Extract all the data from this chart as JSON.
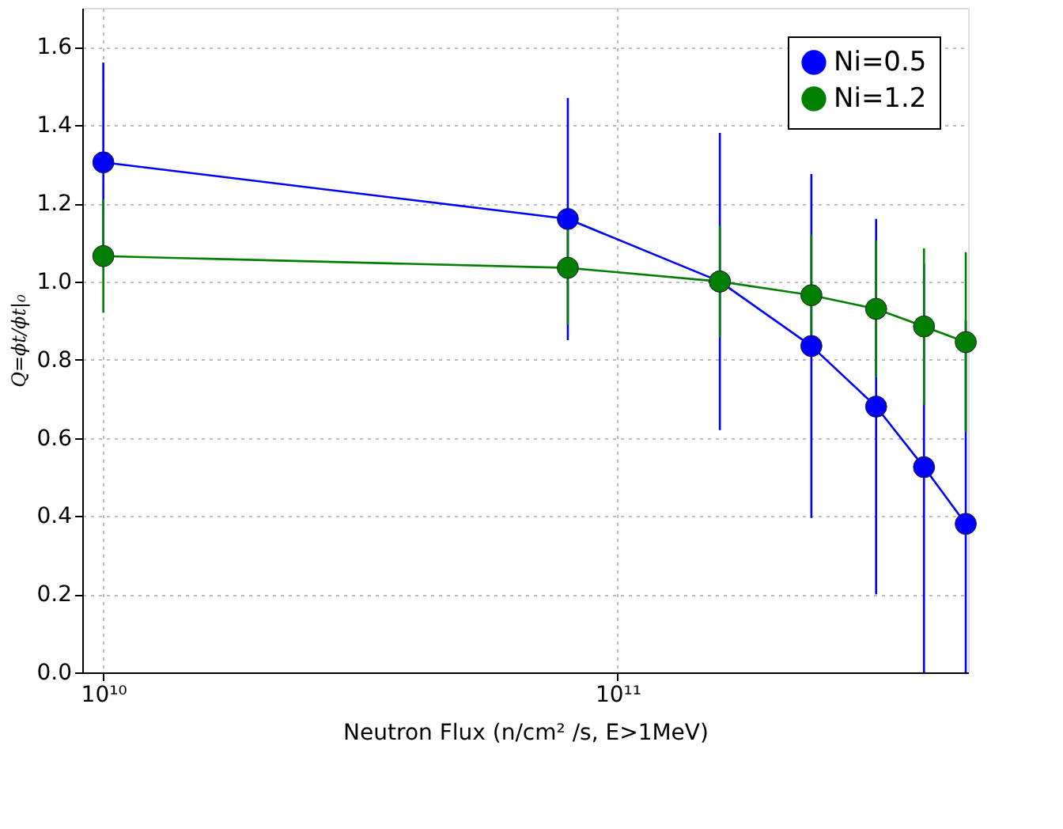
{
  "chart_data": {
    "type": "line",
    "xlabel": "Neutron Flux (n/cm² /s, E>1MeV)",
    "ylabel": "Q=ϕt/ϕt|₀",
    "x": [
      10000000000.0,
      80000000000.0,
      158000000000.0,
      238000000000.0,
      318000000000.0,
      394000000000.0,
      475000000000.0
    ],
    "series": [
      {
        "name": "Ni=0.5",
        "color": "#0000ff",
        "values": [
          1.305,
          1.16,
          1.0,
          0.835,
          0.68,
          0.525,
          0.38
        ],
        "errors": [
          0.255,
          0.31,
          0.38,
          0.44,
          0.48,
          [
            0.0,
            1.045
          ],
          [
            0.0,
            0.9
          ]
        ]
      },
      {
        "name": "Ni=1.2",
        "color": "#007f00",
        "values": [
          1.065,
          1.035,
          1.0,
          0.965,
          0.93,
          0.885,
          0.845
        ],
        "errors": [
          0.145,
          0.145,
          0.143,
          0.155,
          0.175,
          0.2,
          0.23
        ]
      }
    ],
    "xlim": [
      9100000000.0,
      480000000000.0
    ],
    "ylim": [
      0,
      1.7
    ],
    "xticks": [
      {
        "value": 10000000000.0,
        "label": "10¹⁰"
      },
      {
        "value": 100000000000.0,
        "label": "10¹¹"
      }
    ],
    "yticks": [
      {
        "value": 0,
        "label": "0.0"
      },
      {
        "value": 0.2,
        "label": "0.2"
      },
      {
        "value": 0.4,
        "label": "0.4"
      },
      {
        "value": 0.6,
        "label": "0.6"
      },
      {
        "value": 0.8,
        "label": "0.8"
      },
      {
        "value": 1.0,
        "label": "1.0"
      },
      {
        "value": 1.2,
        "label": "1.2"
      },
      {
        "value": 1.4,
        "label": "1.4"
      },
      {
        "value": 1.6,
        "label": "1.6"
      }
    ],
    "log": "x",
    "grid": true,
    "legend": "top right",
    "marker": "circle",
    "line_style": "solid"
  }
}
